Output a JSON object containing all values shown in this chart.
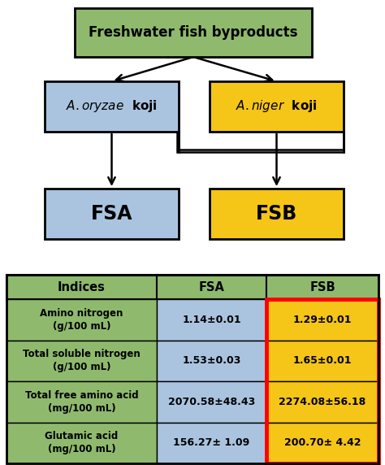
{
  "title": "Freshwater fish byproducts",
  "box_top_color": "#8fba6e",
  "box_oryzae_color": "#aac4e0",
  "box_niger_color": "#f5c518",
  "box_fsa_color": "#aac4e0",
  "box_fsb_color": "#f5c518",
  "table_header_color": "#8fba6e",
  "table_indices_color": "#8fba6e",
  "table_fsa_color": "#aac4e0",
  "table_fsb_color": "#f5c518",
  "table_fsb_border_color": "#ff0000",
  "indices": [
    "Amino nitrogen\n(g/100 mL)",
    "Total soluble nitrogen\n(g/100 mL)",
    "Total free amino acid\n(mg/100 mL)",
    "Glutamic acid\n(mg/100 mL)"
  ],
  "fsa_values": [
    "1.14±0.01",
    "1.53±0.03",
    "2070.58±48.43",
    "156.27± 1.09"
  ],
  "fsb_values": [
    "1.29±0.01",
    "1.65±0.01",
    "2274.08±56.18",
    "200.70± 4.42"
  ],
  "background_color": "#ffffff"
}
